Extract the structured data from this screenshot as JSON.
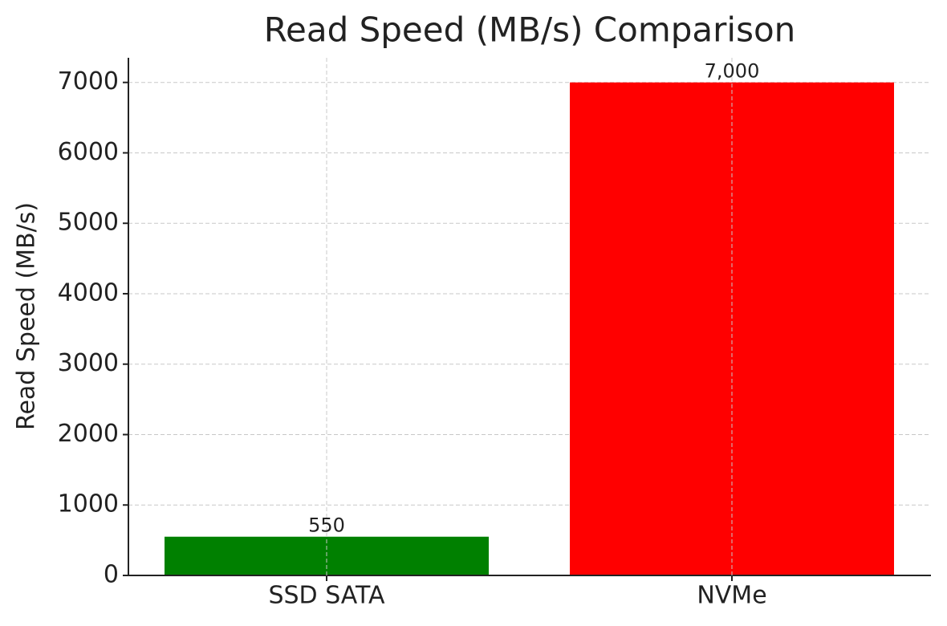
{
  "chart_data": {
    "type": "bar",
    "title": "Read Speed (MB/s) Comparison",
    "y_label": "Read Speed (MB/s)",
    "categories": [
      "SSD SATA",
      "NVMe"
    ],
    "values": [
      550,
      7000
    ],
    "value_labels": [
      "550",
      "7,000"
    ],
    "colors": [
      "#008000",
      "#ff0000"
    ],
    "ylim": [
      0,
      7350
    ],
    "yticks": [
      0,
      1000,
      2000,
      3000,
      4000,
      5000,
      6000,
      7000
    ],
    "grid": true
  }
}
